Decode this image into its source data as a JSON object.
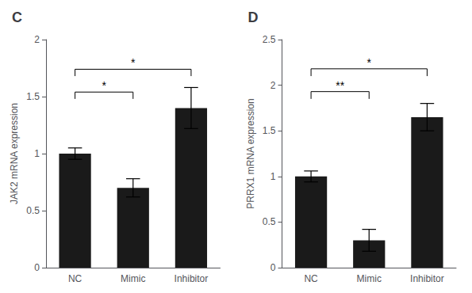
{
  "chart_data": [
    {
      "type": "bar",
      "title": "C",
      "categories": [
        "NC",
        "Mimic",
        "Inhibitor"
      ],
      "values": [
        1.0,
        0.7,
        1.4
      ],
      "errors": [
        0.05,
        0.08,
        0.18
      ],
      "color": "#1a1a1a",
      "ylabel": "JAK2 mRNA expression",
      "ylim": [
        0,
        2.0
      ],
      "yticks": [
        0,
        0.5,
        1.0,
        1.5,
        2.0
      ],
      "grid": false,
      "annotations": [
        {
          "text": "*",
          "from": "NC",
          "to": "Mimic",
          "y": 1.48,
          "y_top": 1.54
        },
        {
          "text": "*",
          "from": "NC",
          "to": "Inhibitor",
          "y": 1.68,
          "y_top": 1.74
        }
      ]
    },
    {
      "type": "bar",
      "title": "D",
      "categories": [
        "NC",
        "Mimic",
        "Inhibitor"
      ],
      "values": [
        1.0,
        0.3,
        1.65
      ],
      "errors": [
        0.06,
        0.12,
        0.15
      ],
      "color": "#1a1a1a",
      "ylabel": "PRRX1 mRNA expression",
      "ylim": [
        0,
        2.5
      ],
      "yticks": [
        0,
        0.5,
        1.0,
        1.5,
        2.0,
        2.5
      ],
      "grid": false,
      "annotations": [
        {
          "text": "**",
          "from": "NC",
          "to": "Mimic",
          "y": 1.85,
          "y_top": 1.93
        },
        {
          "text": "*",
          "from": "NC",
          "to": "Inhibitor",
          "y": 2.1,
          "y_top": 2.18
        }
      ]
    }
  ]
}
